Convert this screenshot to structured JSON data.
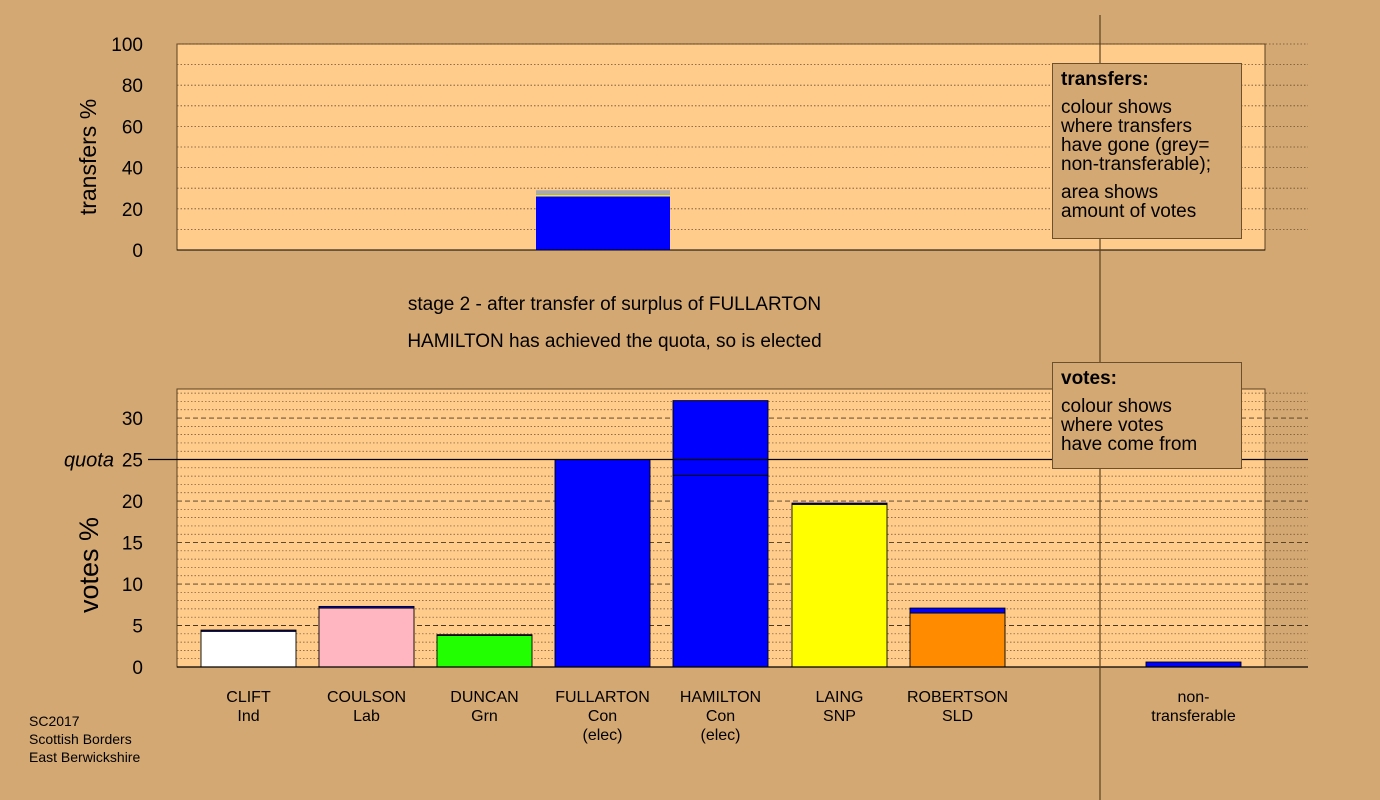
{
  "chart_data": [
    {
      "type": "bar",
      "name": "transfers",
      "ylabel": "transfers %",
      "ylim": [
        0,
        100
      ],
      "yticks": [
        0,
        20,
        40,
        60,
        80,
        100
      ],
      "categories": [
        "CLIFT",
        "COULSON",
        "DUNCAN",
        "FULLARTON",
        "HAMILTON",
        "LAING",
        "ROBERTSON"
      ],
      "highlight_category": "FULLARTON",
      "segments": [
        {
          "color": "#0000ff",
          "value": 26
        },
        {
          "color": "#ffff00",
          "value": 0.6
        },
        {
          "color": "#aaaaaa",
          "value": 2.4
        }
      ],
      "legend": {
        "title": "transfers:",
        "lines": [
          "colour shows",
          "where transfers",
          "have gone (grey=",
          "non-transferable);",
          "",
          "area shows",
          "amount of votes"
        ]
      }
    },
    {
      "type": "bar",
      "name": "votes",
      "ylabel": "votes %",
      "ylim": [
        0,
        33.5
      ],
      "yticks": [
        0,
        5,
        10,
        15,
        20,
        25,
        30
      ],
      "quota": 25,
      "quota_label": "quota",
      "candidates": [
        {
          "name": "CLIFT",
          "party": "Ind",
          "status": "",
          "segments": [
            {
              "color": "#ffffff",
              "value": 4.3
            },
            {
              "color": "#0000ff",
              "value": 0.15
            }
          ]
        },
        {
          "name": "COULSON",
          "party": "Lab",
          "status": "",
          "segments": [
            {
              "color": "#ffb6c1",
              "value": 7.1
            },
            {
              "color": "#0000ff",
              "value": 0.2
            }
          ]
        },
        {
          "name": "DUNCAN",
          "party": "Grn",
          "status": "",
          "segments": [
            {
              "color": "#22ff00",
              "value": 3.8
            },
            {
              "color": "#0000ff",
              "value": 0.1
            }
          ]
        },
        {
          "name": "FULLARTON",
          "party": "Con",
          "status": "(elec)",
          "segments": [
            {
              "color": "#0000ff",
              "value": 25
            }
          ]
        },
        {
          "name": "HAMILTON",
          "party": "Con",
          "status": "(elec)",
          "segments": [
            {
              "color": "#0000ff",
              "value": 23.1
            },
            {
              "color": "#0000ff",
              "value": 9.0
            }
          ]
        },
        {
          "name": "LAING",
          "party": "SNP",
          "status": "",
          "segments": [
            {
              "color": "#ffff00",
              "value": 19.6
            },
            {
              "color": "#0000ff",
              "value": 0.15
            }
          ]
        },
        {
          "name": "ROBERTSON",
          "party": "SLD",
          "status": "",
          "segments": [
            {
              "color": "#ff8c00",
              "value": 6.5
            },
            {
              "color": "#0000ff",
              "value": 0.6
            }
          ]
        }
      ],
      "nontransferable": {
        "label_line1": "non-",
        "label_line2": "transferable",
        "segments": [
          {
            "color": "#0000ff",
            "value": 0.6
          }
        ]
      },
      "legend": {
        "title": "votes:",
        "lines": [
          "colour shows",
          "where votes",
          "have come from"
        ]
      }
    }
  ],
  "captions": {
    "stage": "stage 2 - after transfer of surplus of FULLARTON",
    "elected": "HAMILTON has achieved the quota, so is elected"
  },
  "footer": [
    "SC2017",
    "Scottish Borders",
    "East Berwickshire"
  ]
}
